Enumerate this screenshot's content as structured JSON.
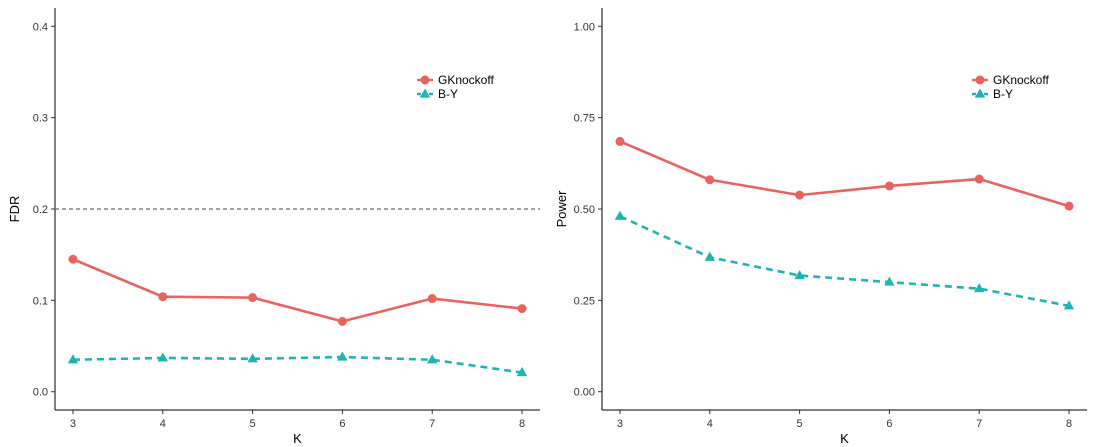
{
  "chart_data": [
    {
      "type": "line",
      "xlabel": "K",
      "ylabel": "FDR",
      "x": [
        3,
        4,
        5,
        6,
        7,
        8
      ],
      "xlim": [
        2.8,
        8.2
      ],
      "ylim": [
        -0.02,
        0.42
      ],
      "yticks": [
        0.0,
        0.1,
        0.2,
        0.3,
        0.4
      ],
      "ytick_labels": [
        "0.0",
        "0.1",
        "0.2",
        "0.3",
        "0.4"
      ],
      "xtick_labels": [
        "3",
        "4",
        "5",
        "6",
        "7",
        "8"
      ],
      "grid": false,
      "legend_position": "top-right",
      "reference_line": {
        "y": 0.2,
        "style": "dashed",
        "color": "#6b6b6b"
      },
      "series": [
        {
          "name": "GKnockoff",
          "values": [
            0.145,
            0.104,
            0.103,
            0.077,
            0.102,
            0.091
          ],
          "color": "#E8635E",
          "marker": "circle",
          "line_style": "solid"
        },
        {
          "name": "B-Y",
          "values": [
            0.035,
            0.037,
            0.036,
            0.038,
            0.035,
            0.021
          ],
          "color": "#1FB4B4",
          "marker": "triangle",
          "line_style": "dashed"
        }
      ]
    },
    {
      "type": "line",
      "xlabel": "K",
      "ylabel": "Power",
      "x": [
        3,
        4,
        5,
        6,
        7,
        8
      ],
      "xlim": [
        2.8,
        8.2
      ],
      "ylim": [
        -0.05,
        1.05
      ],
      "yticks": [
        0.0,
        0.25,
        0.5,
        0.75,
        1.0
      ],
      "ytick_labels": [
        "0.00",
        "0.25",
        "0.50",
        "0.75",
        "1.00"
      ],
      "xtick_labels": [
        "3",
        "4",
        "5",
        "6",
        "7",
        "8"
      ],
      "grid": false,
      "legend_position": "top-right",
      "series": [
        {
          "name": "GKnockoff",
          "values": [
            0.685,
            0.58,
            0.538,
            0.563,
            0.582,
            0.508
          ],
          "color": "#E8635E",
          "marker": "circle",
          "line_style": "solid"
        },
        {
          "name": "B-Y",
          "values": [
            0.48,
            0.368,
            0.318,
            0.3,
            0.282,
            0.235
          ],
          "color": "#1FB4B4",
          "marker": "triangle",
          "line_style": "dashed"
        }
      ]
    }
  ]
}
